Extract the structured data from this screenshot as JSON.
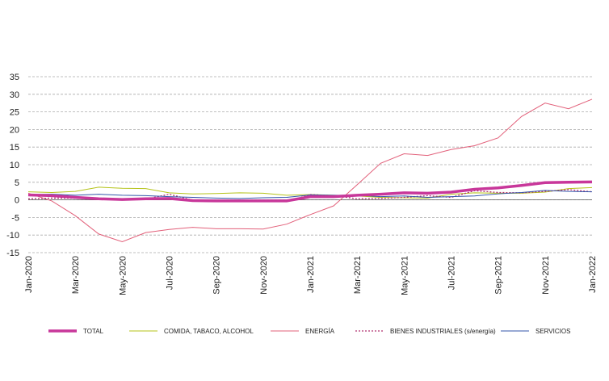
{
  "chart_data": {
    "type": "line",
    "categories": [
      "Jan-2020",
      null,
      "Mar-2020",
      null,
      "May-2020",
      null,
      "Jul-2020",
      null,
      "Sep-2020",
      null,
      "Nov-2020",
      null,
      "Jan-2021",
      null,
      "Mar-2021",
      null,
      "May-2021",
      null,
      "Jul-2021",
      null,
      "Sep-2021",
      null,
      "Nov-2021",
      null,
      "Jan-2022"
    ],
    "ylim": [
      -15,
      35
    ],
    "yticks": [
      -15,
      -10,
      -5,
      0,
      5,
      10,
      15,
      20,
      25,
      30,
      35
    ],
    "grid": true,
    "series": [
      {
        "name": "TOTAL",
        "color": "#c8379a",
        "width": 3.5,
        "dash": "none",
        "values": [
          1.4,
          1.2,
          0.7,
          0.3,
          0.1,
          0.3,
          0.4,
          -0.2,
          -0.3,
          -0.3,
          -0.3,
          -0.3,
          0.9,
          0.9,
          1.3,
          1.6,
          2.0,
          1.9,
          2.2,
          3.0,
          3.4,
          4.1,
          4.9,
          5.0,
          5.1
        ]
      },
      {
        "name": "COMIDA, TABACO, ALCOHOL",
        "color": "#b5c31a",
        "width": 1,
        "dash": "none",
        "values": [
          2.3,
          2.1,
          2.4,
          3.6,
          3.3,
          3.2,
          2.0,
          1.7,
          1.8,
          2.0,
          1.9,
          1.3,
          1.5,
          1.3,
          1.1,
          0.7,
          0.6,
          0.5,
          1.6,
          2.0,
          1.9,
          1.9,
          2.2,
          3.2,
          3.5
        ]
      },
      {
        "name": "ENERGÍA",
        "color": "#e2607a",
        "width": 1,
        "dash": "none",
        "values": [
          1.9,
          -0.3,
          -4.5,
          -9.7,
          -11.9,
          -9.3,
          -8.4,
          -7.8,
          -8.2,
          -8.2,
          -8.3,
          -6.9,
          -4.2,
          -1.7,
          4.3,
          10.4,
          13.1,
          12.6,
          14.3,
          15.4,
          17.6,
          23.7,
          27.5,
          25.9,
          28.6
        ]
      },
      {
        "name": "BIENES INDUSTRIALES (s/energía)",
        "color": "#b0306f",
        "width": 1.3,
        "dash": "2,2",
        "values": [
          0.3,
          0.5,
          0.5,
          0.3,
          0.2,
          0.2,
          1.6,
          -0.1,
          -0.1,
          -0.1,
          -0.3,
          -0.5,
          1.5,
          1.2,
          0.3,
          0.4,
          0.7,
          1.2,
          0.7,
          2.6,
          2.1,
          2.0,
          2.4,
          2.9,
          2.3
        ]
      },
      {
        "name": "SERVICIOS",
        "color": "#3355aa",
        "width": 1,
        "dash": "none",
        "values": [
          1.5,
          1.6,
          1.3,
          1.6,
          1.3,
          1.2,
          0.9,
          0.7,
          0.5,
          0.4,
          0.6,
          0.7,
          1.4,
          1.3,
          1.3,
          0.9,
          1.1,
          0.7,
          0.9,
          1.1,
          1.7,
          2.1,
          2.7,
          2.4,
          2.3
        ]
      }
    ]
  }
}
